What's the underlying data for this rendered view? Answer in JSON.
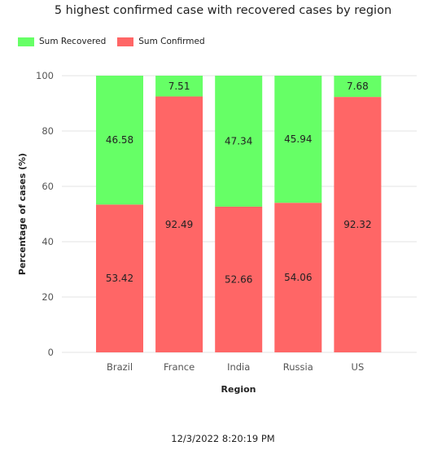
{
  "chart_data": {
    "type": "bar",
    "stacked": true,
    "title": "5 highest confirmed case with recovered cases by region",
    "xlabel": "Region",
    "ylabel": "Percentage of cases (%)",
    "ylim": [
      0,
      100
    ],
    "yticks": [
      0,
      20,
      40,
      60,
      80,
      100
    ],
    "grid": true,
    "legend_position": "top-left",
    "categories": [
      "Brazil",
      "France",
      "India",
      "Russia",
      "US"
    ],
    "series": [
      {
        "name": "Sum Confirmed",
        "color": "#ff6666",
        "values": [
          53.42,
          92.49,
          52.66,
          54.06,
          92.32
        ]
      },
      {
        "name": "Sum Recovered",
        "color": "#66ff66",
        "values": [
          46.58,
          7.51,
          47.34,
          45.94,
          7.68
        ]
      }
    ]
  },
  "legend": {
    "items": [
      {
        "label": "Sum Recovered",
        "color": "#66ff66"
      },
      {
        "label": "Sum Confirmed",
        "color": "#ff6666"
      }
    ]
  },
  "footer": {
    "timestamp": "12/3/2022 8:20:19 PM"
  }
}
